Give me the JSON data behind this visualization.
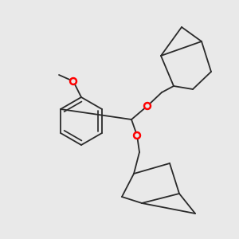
{
  "background_color": "#e9e9e9",
  "line_color": "#2a2a2a",
  "oxygen_color": "#ff0000",
  "line_width": 1.3,
  "fig_size": [
    3.0,
    3.0
  ],
  "dpi": 100,
  "xlim": [
    0,
    300
  ],
  "ylim": [
    0,
    300
  ]
}
